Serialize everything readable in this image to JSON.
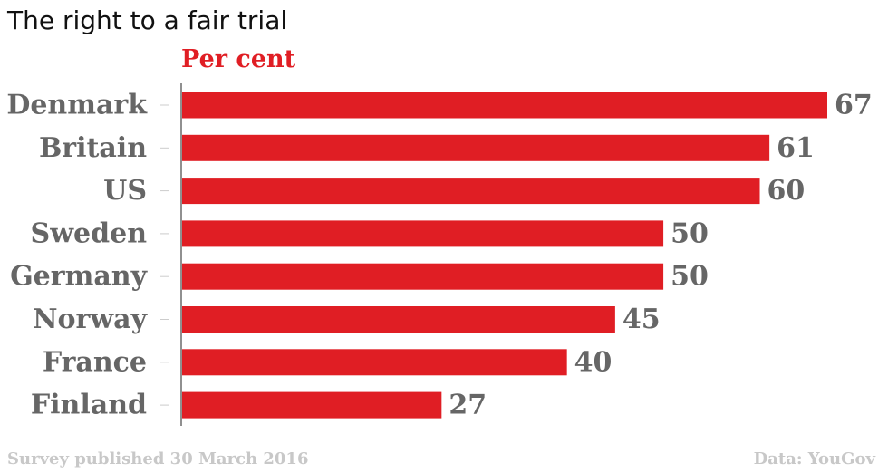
{
  "chart_data": {
    "type": "bar",
    "orientation": "horizontal",
    "title": "The right to a fair trial",
    "unit_label": "Per cent",
    "categories": [
      "Denmark",
      "Britain",
      "US",
      "Sweden",
      "Germany",
      "Norway",
      "France",
      "Finland"
    ],
    "values": [
      67,
      61,
      60,
      50,
      50,
      45,
      40,
      27
    ],
    "xlim": [
      0,
      67
    ],
    "grid": false,
    "colors": {
      "bar": "#e01e24",
      "label": "#666666",
      "unit": "#e01e24"
    }
  },
  "footer": {
    "source_note": "Survey published 30 March 2016",
    "data_credit": "Data: YouGov"
  }
}
